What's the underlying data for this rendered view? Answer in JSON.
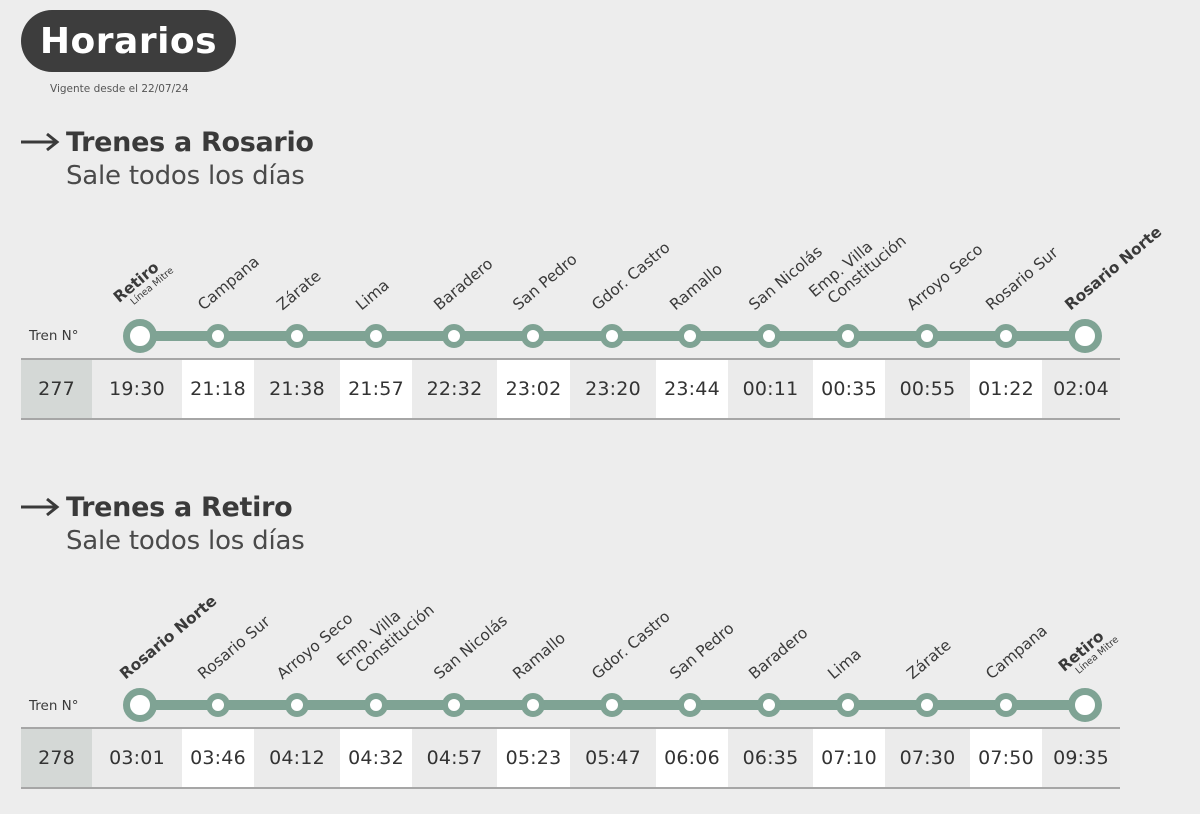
{
  "header": {
    "title": "Horarios",
    "validity": "Vigente desde el 22/07/24"
  },
  "colors": {
    "line": "#7fa394",
    "pill": "#3d3d3d",
    "background": "#ededed"
  },
  "sections": [
    {
      "title": "Trenes a Rosario",
      "subtitle": "Sale todos los días",
      "tren_label": "Tren N°",
      "train_number": "277",
      "stations": [
        {
          "name": "Retiro",
          "sub": "Línea Mitre",
          "terminal": true
        },
        {
          "name": "Campana"
        },
        {
          "name": "Zárate"
        },
        {
          "name": "Lima"
        },
        {
          "name": "Baradero"
        },
        {
          "name": "San Pedro"
        },
        {
          "name": "Gdor. Castro"
        },
        {
          "name": "Ramallo"
        },
        {
          "name": "San Nicolás"
        },
        {
          "name": "Emp. Villa",
          "name2": "Constitución"
        },
        {
          "name": "Arroyo Seco"
        },
        {
          "name": "Rosario Sur"
        },
        {
          "name": "Rosario Norte",
          "terminal": true
        }
      ],
      "times": [
        "19:30",
        "21:18",
        "21:38",
        "21:57",
        "22:32",
        "23:02",
        "23:20",
        "23:44",
        "00:11",
        "00:35",
        "00:55",
        "01:22",
        "02:04"
      ]
    },
    {
      "title": "Trenes a Retiro",
      "subtitle": "Sale todos los días",
      "tren_label": "Tren N°",
      "train_number": "278",
      "stations": [
        {
          "name": "Rosario Norte",
          "terminal": true
        },
        {
          "name": "Rosario Sur"
        },
        {
          "name": "Arroyo Seco"
        },
        {
          "name": "Emp. Villa",
          "name2": "Constitución"
        },
        {
          "name": "San Nicolás"
        },
        {
          "name": "Ramallo"
        },
        {
          "name": "Gdor. Castro"
        },
        {
          "name": "San Pedro"
        },
        {
          "name": "Baradero"
        },
        {
          "name": "Lima"
        },
        {
          "name": "Zárate"
        },
        {
          "name": "Campana"
        },
        {
          "name": "Retiro",
          "sub": "Línea Mitre",
          "terminal": true
        }
      ],
      "times": [
        "03:01",
        "03:46",
        "04:12",
        "04:32",
        "04:57",
        "05:23",
        "05:47",
        "06:06",
        "06:35",
        "07:10",
        "07:30",
        "07:50",
        "09:35"
      ]
    }
  ]
}
